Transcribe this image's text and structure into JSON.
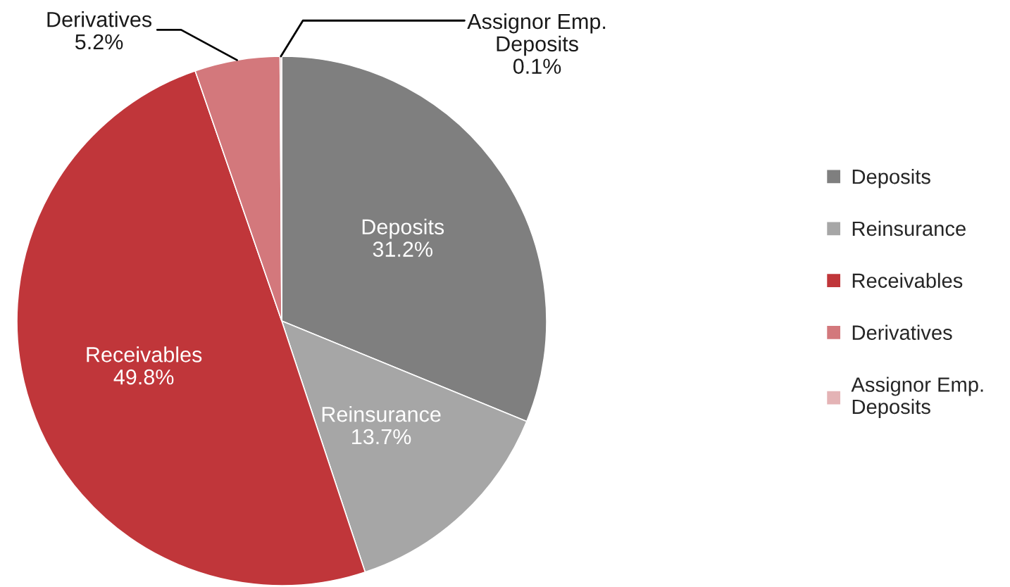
{
  "chart_data": {
    "type": "pie",
    "categories": [
      "Deposits",
      "Reinsurance",
      "Receivables",
      "Derivatives",
      "Assignor Emp. Deposits"
    ],
    "values": [
      31.2,
      13.7,
      49.8,
      5.2,
      0.1
    ],
    "colors": [
      "#7f7f7f",
      "#a6a6a6",
      "#c0363a",
      "#d3787c",
      "#e4b3b5"
    ],
    "value_labels": [
      "31.2%",
      "13.7%",
      "49.8%",
      "5.2%",
      "0.1%"
    ],
    "legend": "right"
  }
}
